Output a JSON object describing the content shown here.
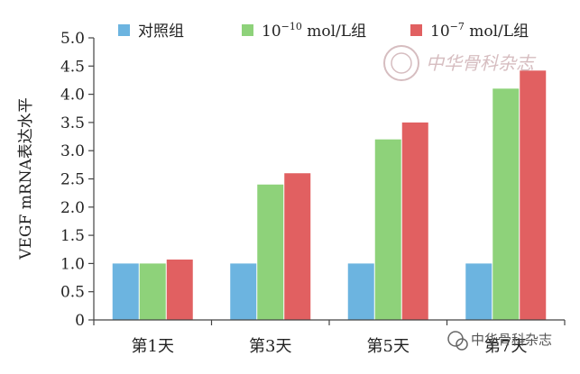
{
  "chart_data": {
    "type": "bar",
    "categories": [
      "第1天",
      "第3天",
      "第5天",
      "第7天"
    ],
    "series": [
      {
        "name": "对照组",
        "color": "#6cb4e0",
        "values": [
          1.0,
          1.0,
          1.0,
          1.0
        ]
      },
      {
        "name": "10−10 mol/L组",
        "name_parts": [
          "10",
          "−10",
          " mol/L组"
        ],
        "color": "#8ed27a",
        "values": [
          1.0,
          2.4,
          3.2,
          4.1
        ]
      },
      {
        "name": "10−7 mol/L组",
        "name_parts": [
          "10",
          "−7",
          " mol/L组"
        ],
        "color": "#e16061",
        "values": [
          1.07,
          2.6,
          3.5,
          4.42
        ]
      }
    ],
    "ylabel": "VEGF mRNA表达水平",
    "ylim": [
      0,
      5.0
    ],
    "yticks": [
      "0",
      "0.5",
      "1.0",
      "1.5",
      "2.0",
      "2.5",
      "3.0",
      "3.5",
      "4.0",
      "4.5",
      "5.0"
    ],
    "grid": false,
    "legend_position": "top"
  },
  "watermark": {
    "seal_text": "中华骨科杂志",
    "bottom_text": "中华骨科杂志"
  }
}
